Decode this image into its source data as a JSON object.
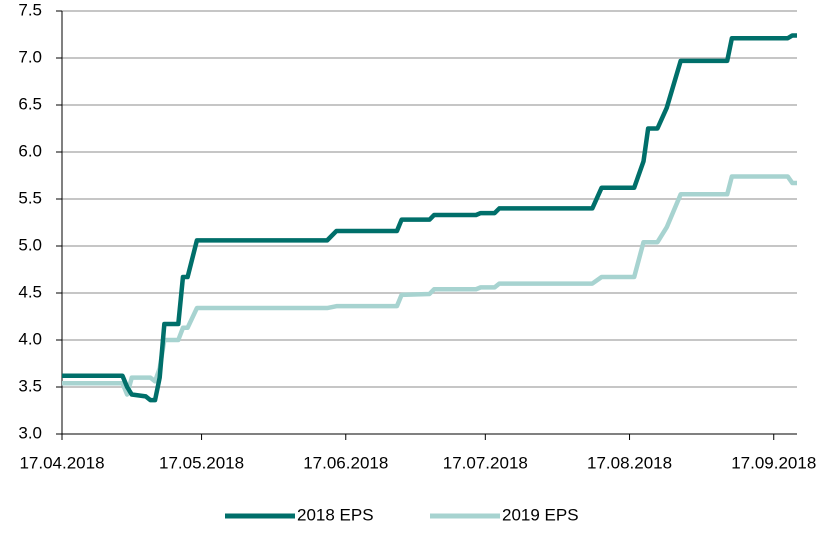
{
  "chart_data": {
    "type": "line",
    "x": [
      "17.04.2018",
      "30.04.2018",
      "01.05.2018",
      "02.05.2018",
      "05.05.2018",
      "06.05.2018",
      "07.05.2018",
      "08.05.2018",
      "09.05.2018",
      "12.05.2018",
      "13.05.2018",
      "14.05.2018",
      "16.05.2018",
      "13.06.2018",
      "15.06.2018",
      "28.06.2018",
      "29.06.2018",
      "05.07.2018",
      "06.07.2018",
      "15.07.2018",
      "16.07.2018",
      "19.07.2018",
      "20.07.2018",
      "09.08.2018",
      "11.08.2018",
      "18.08.2018",
      "20.08.2018",
      "21.08.2018",
      "23.08.2018",
      "25.08.2018",
      "28.08.2018",
      "07.09.2018",
      "08.09.2018",
      "20.09.2018",
      "21.09.2018",
      "22.09.2018"
    ],
    "series": [
      {
        "name": "2018 EPS",
        "color": "#006f6a",
        "values": [
          3.62,
          3.62,
          3.5,
          3.42,
          3.4,
          3.36,
          3.36,
          3.6,
          4.17,
          4.17,
          4.67,
          4.67,
          5.06,
          5.06,
          5.16,
          5.16,
          5.28,
          5.28,
          5.33,
          5.33,
          5.35,
          5.35,
          5.4,
          5.4,
          5.62,
          5.62,
          5.9,
          6.25,
          6.25,
          6.47,
          6.97,
          6.97,
          7.21,
          7.21,
          7.24,
          7.24
        ]
      },
      {
        "name": "2019 EPS",
        "color": "#a7d3d0",
        "values": [
          3.54,
          3.54,
          3.42,
          3.6,
          3.6,
          3.6,
          3.56,
          3.7,
          4.0,
          4.0,
          4.13,
          4.13,
          4.34,
          4.34,
          4.36,
          4.36,
          4.48,
          4.49,
          4.54,
          4.54,
          4.56,
          4.56,
          4.6,
          4.6,
          4.67,
          4.67,
          5.04,
          5.04,
          5.04,
          5.2,
          5.55,
          5.55,
          5.74,
          5.74,
          5.67,
          5.67
        ]
      }
    ],
    "xlim": [
      "17.04.2018",
      "22.09.2018"
    ],
    "xticks": [
      "17.04.2018",
      "17.05.2018",
      "17.06.2018",
      "17.07.2018",
      "17.08.2018",
      "17.09.2018"
    ],
    "ylim": [
      3,
      7.5
    ],
    "yticks": [
      {
        "value": 3,
        "label": "3.0"
      },
      3.5,
      {
        "value": 4,
        "label": "4.0"
      },
      4.5,
      {
        "value": 5,
        "label": "5.0"
      },
      5.5,
      {
        "value": 6,
        "label": "6.0"
      },
      6.5,
      {
        "value": 7,
        "label": "7.0"
      },
      7.5
    ],
    "grid": true,
    "legend": "bottom"
  }
}
